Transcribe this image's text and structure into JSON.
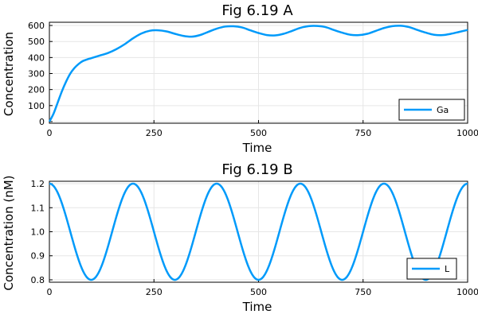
{
  "chart_data": [
    {
      "type": "line",
      "title": "Fig 6.19 A",
      "xlabel": "Time",
      "ylabel": "Concentration",
      "xlim": [
        0,
        1000
      ],
      "ylim": [
        -10,
        620
      ],
      "xticks": [
        0,
        250,
        500,
        750,
        1000
      ],
      "xtick_labels": [
        "0",
        "250",
        "500",
        "750",
        "1000"
      ],
      "yticks": [
        0,
        100,
        200,
        300,
        400,
        500,
        600
      ],
      "ytick_labels": [
        "0",
        "100",
        "200",
        "300",
        "400",
        "500",
        "600"
      ],
      "grid": true,
      "legend_position": "bottom-right",
      "color": "#009AFA",
      "series": [
        {
          "name": "Ga",
          "x": [
            0,
            10,
            20,
            30,
            40,
            50,
            60,
            70,
            80,
            90,
            100,
            120,
            140,
            160,
            180,
            200,
            220,
            240,
            260,
            280,
            300,
            320,
            340,
            360,
            380,
            400,
            420,
            440,
            460,
            480,
            500,
            520,
            540,
            560,
            580,
            600,
            620,
            640,
            660,
            680,
            700,
            720,
            740,
            760,
            780,
            800,
            820,
            840,
            860,
            880,
            900,
            920,
            940,
            960,
            980,
            1000
          ],
          "y": [
            0,
            50,
            120,
            190,
            250,
            300,
            335,
            360,
            378,
            388,
            396,
            412,
            428,
            452,
            483,
            520,
            550,
            567,
            570,
            563,
            548,
            535,
            530,
            540,
            560,
            580,
            593,
            595,
            588,
            570,
            553,
            540,
            538,
            548,
            566,
            585,
            596,
            597,
            590,
            572,
            555,
            542,
            540,
            548,
            566,
            584,
            596,
            598,
            590,
            572,
            555,
            542,
            540,
            548,
            560,
            572
          ]
        }
      ]
    },
    {
      "type": "line",
      "title": "Fig 6.19 B",
      "xlabel": "Time",
      "ylabel": "Concentration (nM)",
      "xlim": [
        0,
        1000
      ],
      "ylim": [
        0.79,
        1.21
      ],
      "xticks": [
        0,
        250,
        500,
        750,
        1000
      ],
      "xtick_labels": [
        "0",
        "250",
        "500",
        "750",
        "1000"
      ],
      "yticks": [
        0.8,
        0.9,
        1.0,
        1.1,
        1.2
      ],
      "ytick_labels": [
        "0.8",
        "0.9",
        "1.0",
        "1.1",
        "1.2"
      ],
      "grid": true,
      "legend_position": "bottom-right",
      "color": "#009AFA",
      "waveform": {
        "mean": 1.0,
        "amplitude": 0.2,
        "period": 200
      },
      "series": [
        {
          "name": "L",
          "x": [
            0,
            100,
            200,
            300,
            400,
            500,
            600,
            700,
            800,
            900,
            1000
          ],
          "y": [
            1.2,
            0.8,
            1.2,
            0.8,
            1.2,
            0.8,
            1.2,
            0.8,
            1.2,
            0.8,
            1.2
          ]
        }
      ]
    }
  ]
}
